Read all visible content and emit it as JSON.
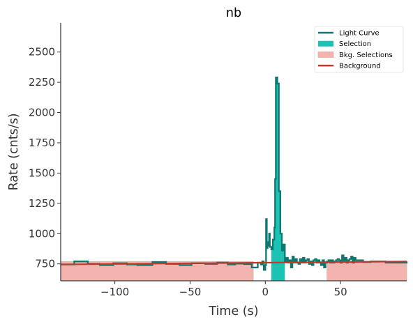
{
  "chart_data": {
    "type": "line",
    "title": "nb",
    "xlabel": "Time (s)",
    "ylabel": "Rate (cnts/s)",
    "xlim": [
      -136,
      94
    ],
    "ylim": [
      610,
      2740
    ],
    "xticks": [
      -100,
      -50,
      0,
      50
    ],
    "xtick_labels": [
      "−100",
      "−50",
      "0",
      "50"
    ],
    "yticks": [
      750,
      1000,
      1250,
      1500,
      1750,
      2000,
      2250,
      2500
    ],
    "ytick_labels": [
      "750",
      "1000",
      "1250",
      "1500",
      "1750",
      "2000",
      "2250",
      "2500"
    ],
    "grid": false,
    "legend_position": "top-right",
    "legend": [
      {
        "label": "Light Curve",
        "kind": "line",
        "color": "#0d7870"
      },
      {
        "label": "Selection",
        "kind": "patch",
        "color": "#1cc3b5"
      },
      {
        "label": "Bkg. Selections",
        "kind": "patch",
        "color": "#f4b4ae"
      },
      {
        "label": "Background",
        "kind": "line",
        "color": "#c0392b"
      }
    ],
    "light_curve": {
      "name": "Light Curve",
      "color": "#0d7870",
      "x": [
        -136,
        -127,
        -118,
        -110,
        -101,
        -92,
        -85,
        -75,
        -66,
        -57,
        -49,
        -40,
        -32,
        -25,
        -20,
        -14,
        -9,
        -5,
        -3,
        -2,
        -1,
        0,
        0.5,
        1,
        1.5,
        2,
        2.5,
        3,
        4,
        5,
        6,
        6.5,
        7,
        8,
        9,
        10,
        11,
        12,
        13,
        14,
        15,
        16,
        17,
        18,
        19,
        20,
        21,
        22,
        23,
        24,
        25,
        26,
        27,
        28,
        29,
        30,
        31,
        32,
        33,
        34,
        35,
        36,
        37,
        38,
        39,
        40,
        41,
        42,
        43,
        44,
        45,
        46,
        47,
        48,
        49,
        50,
        51,
        52,
        53,
        54,
        55,
        56,
        57,
        58,
        59,
        60,
        65,
        70,
        80,
        94
      ],
      "y": [
        745,
        770,
        750,
        740,
        755,
        745,
        740,
        765,
        750,
        740,
        755,
        750,
        760,
        745,
        752,
        748,
        720,
        760,
        745,
        770,
        700,
        740,
        1120,
        880,
        930,
        900,
        1000,
        890,
        870,
        950,
        1050,
        1450,
        2290,
        2240,
        1350,
        1000,
        860,
        910,
        770,
        800,
        760,
        780,
        720,
        810,
        760,
        790,
        760,
        750,
        790,
        760,
        800,
        760,
        780,
        790,
        750,
        770,
        740,
        780,
        790,
        760,
        780,
        760,
        740,
        780,
        720,
        760,
        770,
        780,
        760,
        780,
        760,
        770,
        780,
        790,
        780,
        760,
        820,
        770,
        800,
        760,
        780,
        790,
        810,
        760,
        800,
        780,
        765,
        770,
        760,
        770
      ]
    },
    "selection": {
      "name": "Selection",
      "color": "#1cc3b5",
      "range": [
        4,
        13
      ]
    },
    "bkg_selections": {
      "name": "Bkg. Selections",
      "color": "#f4b4ae",
      "ranges": [
        [
          -136,
          -8
        ],
        [
          41,
          94
        ]
      ]
    },
    "background": {
      "name": "Background",
      "color": "#c0392b",
      "x": [
        -136,
        94
      ],
      "y": [
        745,
        770
      ]
    }
  }
}
